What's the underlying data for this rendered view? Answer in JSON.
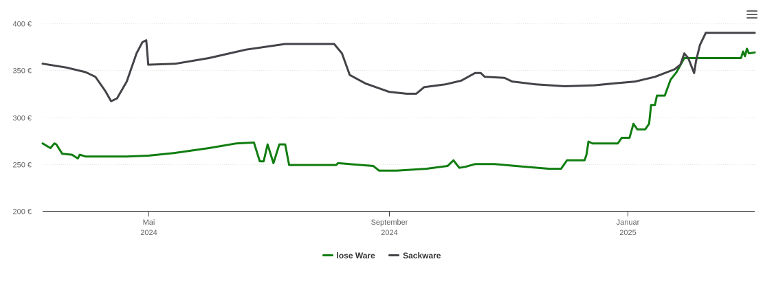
{
  "chart_data": {
    "type": "line",
    "title": "",
    "xlabel": "",
    "ylabel": "",
    "ylim": [
      200,
      400
    ],
    "y_ticks": [
      200,
      250,
      300,
      350,
      400
    ],
    "y_tick_labels": [
      "200 €",
      "250 €",
      "300 €",
      "350 €",
      "400 €"
    ],
    "x_range": [
      "2024-03-08",
      "2025-03-07"
    ],
    "x_ticks": [
      {
        "date": "2024-05-01",
        "line1": "Mai",
        "line2": "2024"
      },
      {
        "date": "2024-09-01",
        "line1": "September",
        "line2": "2024"
      },
      {
        "date": "2025-01-01",
        "line1": "Januar",
        "line2": "2025"
      }
    ],
    "grid": "horizontal",
    "legend_position": "bottom",
    "series": [
      {
        "name": "lose Ware",
        "color": "#107d10",
        "points": [
          [
            "2024-03-08",
            272
          ],
          [
            "2024-03-12",
            267
          ],
          [
            "2024-03-14",
            272
          ],
          [
            "2024-03-15",
            271
          ],
          [
            "2024-03-18",
            261
          ],
          [
            "2024-03-23",
            260
          ],
          [
            "2024-03-26",
            256
          ],
          [
            "2024-03-27",
            260
          ],
          [
            "2024-03-30",
            258
          ],
          [
            "2024-04-20",
            258
          ],
          [
            "2024-05-01",
            259
          ],
          [
            "2024-05-15",
            262
          ],
          [
            "2024-06-01",
            267
          ],
          [
            "2024-06-15",
            272
          ],
          [
            "2024-06-24",
            273
          ],
          [
            "2024-06-27",
            253
          ],
          [
            "2024-06-29",
            253
          ],
          [
            "2024-07-01",
            271
          ],
          [
            "2024-07-04",
            251
          ],
          [
            "2024-07-07",
            271
          ],
          [
            "2024-07-10",
            271
          ],
          [
            "2024-07-12",
            249
          ],
          [
            "2024-08-05",
            249
          ],
          [
            "2024-08-06",
            251
          ],
          [
            "2024-08-24",
            248
          ],
          [
            "2024-08-27",
            243
          ],
          [
            "2024-09-05",
            243
          ],
          [
            "2024-09-20",
            245
          ],
          [
            "2024-10-01",
            248
          ],
          [
            "2024-10-04",
            254
          ],
          [
            "2024-10-07",
            246
          ],
          [
            "2024-10-10",
            247
          ],
          [
            "2024-10-15",
            250
          ],
          [
            "2024-10-25",
            250
          ],
          [
            "2024-11-10",
            247
          ],
          [
            "2024-11-22",
            245
          ],
          [
            "2024-11-28",
            245
          ],
          [
            "2024-12-01",
            254
          ],
          [
            "2024-12-08",
            254
          ],
          [
            "2024-12-10",
            254
          ],
          [
            "2024-12-11",
            260
          ],
          [
            "2024-12-12",
            274
          ],
          [
            "2024-12-14",
            272
          ],
          [
            "2024-12-27",
            272
          ],
          [
            "2024-12-29",
            278
          ],
          [
            "2025-01-02",
            278
          ],
          [
            "2025-01-04",
            293
          ],
          [
            "2025-01-06",
            287
          ],
          [
            "2025-01-10",
            287
          ],
          [
            "2025-01-12",
            293
          ],
          [
            "2025-01-13",
            313
          ],
          [
            "2025-01-15",
            313
          ],
          [
            "2025-01-16",
            323
          ],
          [
            "2025-01-20",
            323
          ],
          [
            "2025-01-23",
            340
          ],
          [
            "2025-01-26",
            348
          ],
          [
            "2025-01-30",
            363
          ],
          [
            "2025-02-28",
            363
          ],
          [
            "2025-03-01",
            370
          ],
          [
            "2025-03-02",
            365
          ],
          [
            "2025-03-03",
            373
          ],
          [
            "2025-03-04",
            368
          ],
          [
            "2025-03-07",
            369
          ]
        ]
      },
      {
        "name": "Sackware",
        "color": "#434348",
        "points": [
          [
            "2024-03-08",
            357
          ],
          [
            "2024-03-20",
            353
          ],
          [
            "2024-03-30",
            348
          ],
          [
            "2024-04-04",
            343
          ],
          [
            "2024-04-09",
            328
          ],
          [
            "2024-04-12",
            317
          ],
          [
            "2024-04-15",
            320
          ],
          [
            "2024-04-20",
            338
          ],
          [
            "2024-04-25",
            368
          ],
          [
            "2024-04-28",
            380
          ],
          [
            "2024-04-30",
            382
          ],
          [
            "2024-05-01",
            356
          ],
          [
            "2024-05-15",
            357
          ],
          [
            "2024-06-01",
            363
          ],
          [
            "2024-06-20",
            372
          ],
          [
            "2024-07-10",
            378
          ],
          [
            "2024-07-30",
            378
          ],
          [
            "2024-08-04",
            378
          ],
          [
            "2024-08-08",
            368
          ],
          [
            "2024-08-12",
            345
          ],
          [
            "2024-08-20",
            336
          ],
          [
            "2024-09-01",
            327
          ],
          [
            "2024-09-10",
            325
          ],
          [
            "2024-09-15",
            325
          ],
          [
            "2024-09-19",
            332
          ],
          [
            "2024-09-30",
            335
          ],
          [
            "2024-10-08",
            339
          ],
          [
            "2024-10-15",
            347
          ],
          [
            "2024-10-18",
            347
          ],
          [
            "2024-10-20",
            343
          ],
          [
            "2024-10-30",
            342
          ],
          [
            "2024-11-03",
            338
          ],
          [
            "2024-11-15",
            335
          ],
          [
            "2024-11-30",
            333
          ],
          [
            "2024-12-15",
            334
          ],
          [
            "2024-12-25",
            336
          ],
          [
            "2025-01-05",
            338
          ],
          [
            "2025-01-15",
            343
          ],
          [
            "2025-01-25",
            351
          ],
          [
            "2025-01-28",
            356
          ],
          [
            "2025-01-30",
            368
          ],
          [
            "2025-02-01",
            363
          ],
          [
            "2025-02-04",
            347
          ],
          [
            "2025-02-05",
            360
          ],
          [
            "2025-02-07",
            377
          ],
          [
            "2025-02-10",
            390
          ],
          [
            "2025-03-07",
            390
          ]
        ]
      }
    ]
  },
  "menu": {
    "icon": "hamburger-menu-icon"
  }
}
